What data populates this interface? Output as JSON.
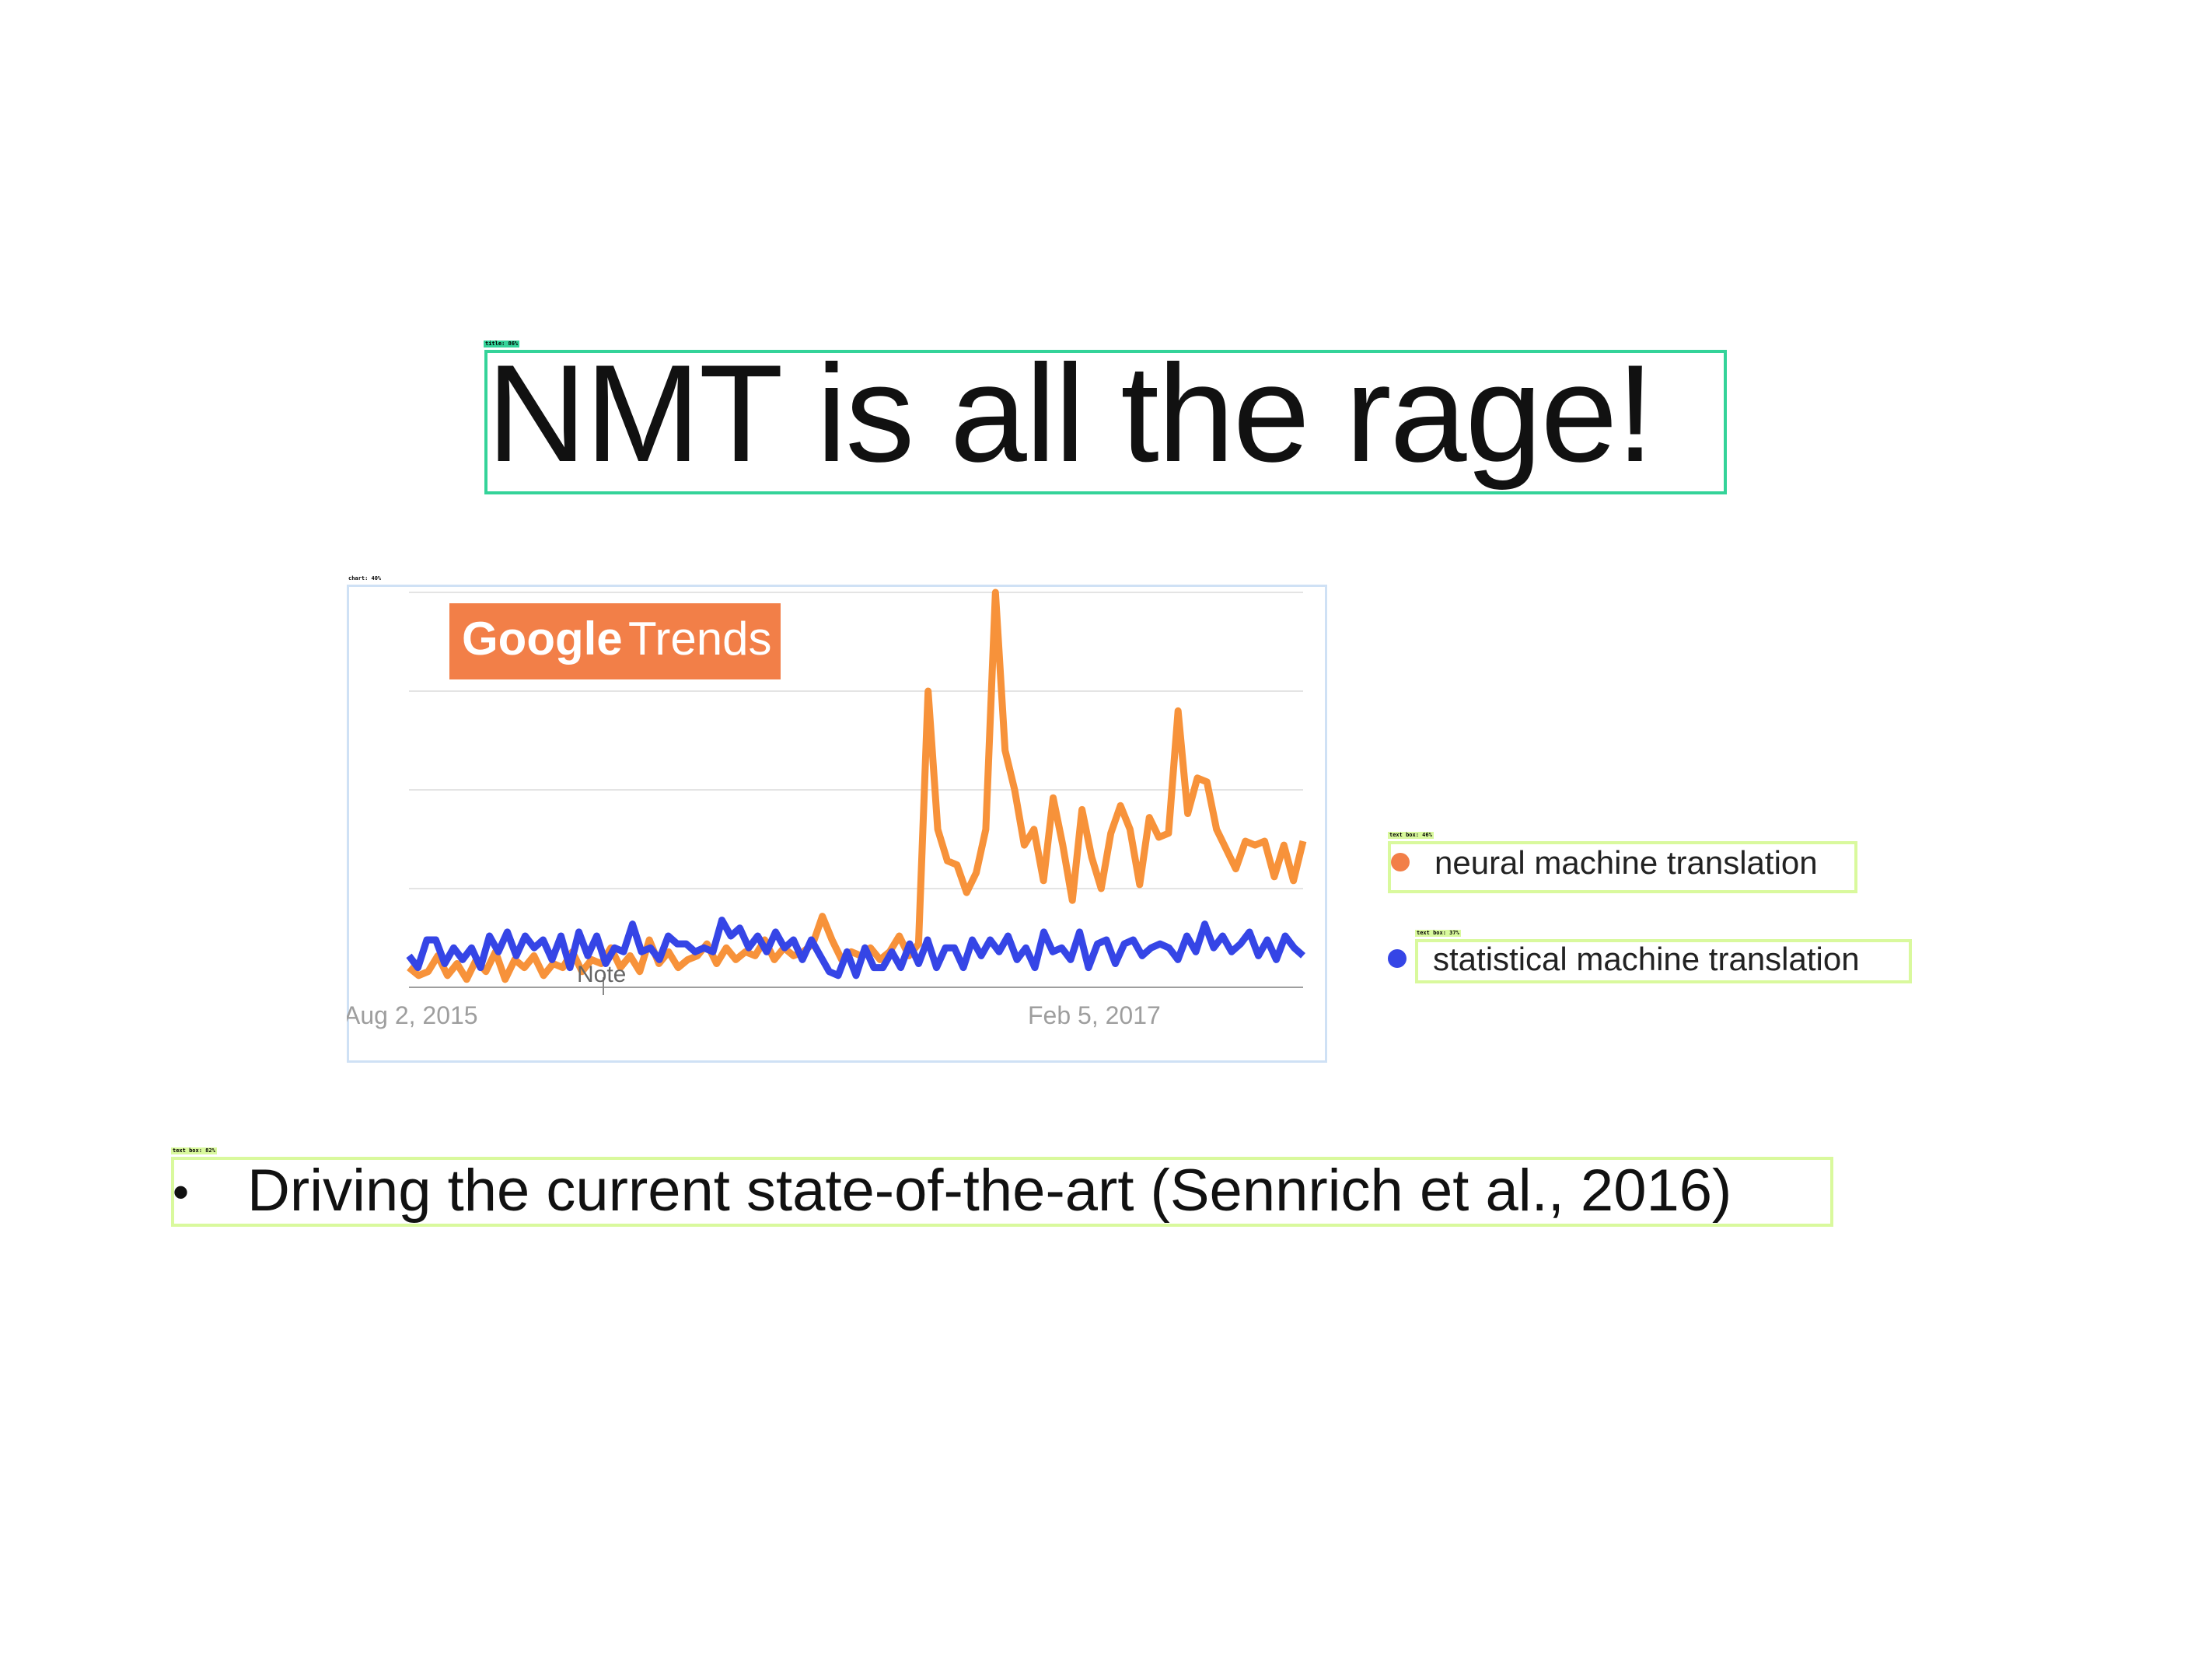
{
  "slide": {
    "title": "NMT is all the rage!",
    "bullet_text": "Driving the current state-of-the-art (Sennrich et al., 2016)"
  },
  "detections": {
    "title": "title: 86%",
    "chart": "chart: 40%",
    "legend_nmt": "text box: 46%",
    "legend_smt": "text box: 37%",
    "bullet": "text box: 82%"
  },
  "legend": {
    "nmt_label": "neural machine translation",
    "smt_label": "statistical machine translation"
  },
  "colors": {
    "nmt": "#f7923a",
    "smt": "#3545e6",
    "logo_bg": "#f27f48",
    "title_box": "#34d399",
    "text_box": "#d9f99d",
    "chart_box": "#cfe1f5"
  },
  "chart_data": {
    "type": "line",
    "logo_text": {
      "google": "Google",
      "trends": "Trends"
    },
    "x_tick_labels": [
      "Aug 2, 2015",
      "Feb 5, 2017"
    ],
    "note_label": "Note",
    "ylim": [
      0,
      100
    ],
    "grid": true,
    "series": [
      {
        "name": "neural machine translation",
        "values": [
          5,
          3,
          4,
          8,
          3,
          6,
          2,
          7,
          4,
          9,
          2,
          7,
          5,
          8,
          3,
          6,
          5,
          9,
          4,
          7,
          6,
          10,
          5,
          8,
          4,
          12,
          6,
          9,
          5,
          7,
          8,
          11,
          6,
          10,
          7,
          9,
          8,
          12,
          7,
          10,
          8,
          9,
          11,
          18,
          12,
          7,
          9,
          8,
          10,
          7,
          9,
          13,
          8,
          11,
          75,
          40,
          32,
          31,
          24,
          29,
          40,
          100,
          60,
          50,
          36,
          40,
          27,
          48,
          36,
          22,
          45,
          33,
          25,
          39,
          46,
          40,
          26,
          43,
          38,
          39,
          70,
          44,
          53,
          52,
          40,
          35,
          30,
          37,
          36,
          37,
          28,
          36,
          27,
          37
        ]
      },
      {
        "name": "statistical machine translation",
        "values": [
          8,
          5,
          12,
          12,
          6,
          10,
          7,
          10,
          5,
          13,
          9,
          14,
          8,
          13,
          10,
          12,
          7,
          13,
          5,
          14,
          8,
          13,
          6,
          10,
          9,
          16,
          9,
          10,
          7,
          13,
          11,
          11,
          9,
          10,
          9,
          17,
          13,
          15,
          10,
          13,
          9,
          14,
          10,
          12,
          7,
          12,
          8,
          4,
          3,
          9,
          3,
          10,
          5,
          5,
          9,
          5,
          11,
          6,
          12,
          5,
          10,
          10,
          5,
          12,
          8,
          12,
          9,
          13,
          7,
          10,
          5,
          14,
          9,
          10,
          7,
          14,
          5,
          11,
          12,
          6,
          11,
          12,
          8,
          10,
          11,
          10,
          7,
          13,
          9,
          16,
          10,
          13,
          9,
          11,
          14,
          8,
          12,
          7,
          13,
          10,
          8
        ]
      }
    ]
  }
}
